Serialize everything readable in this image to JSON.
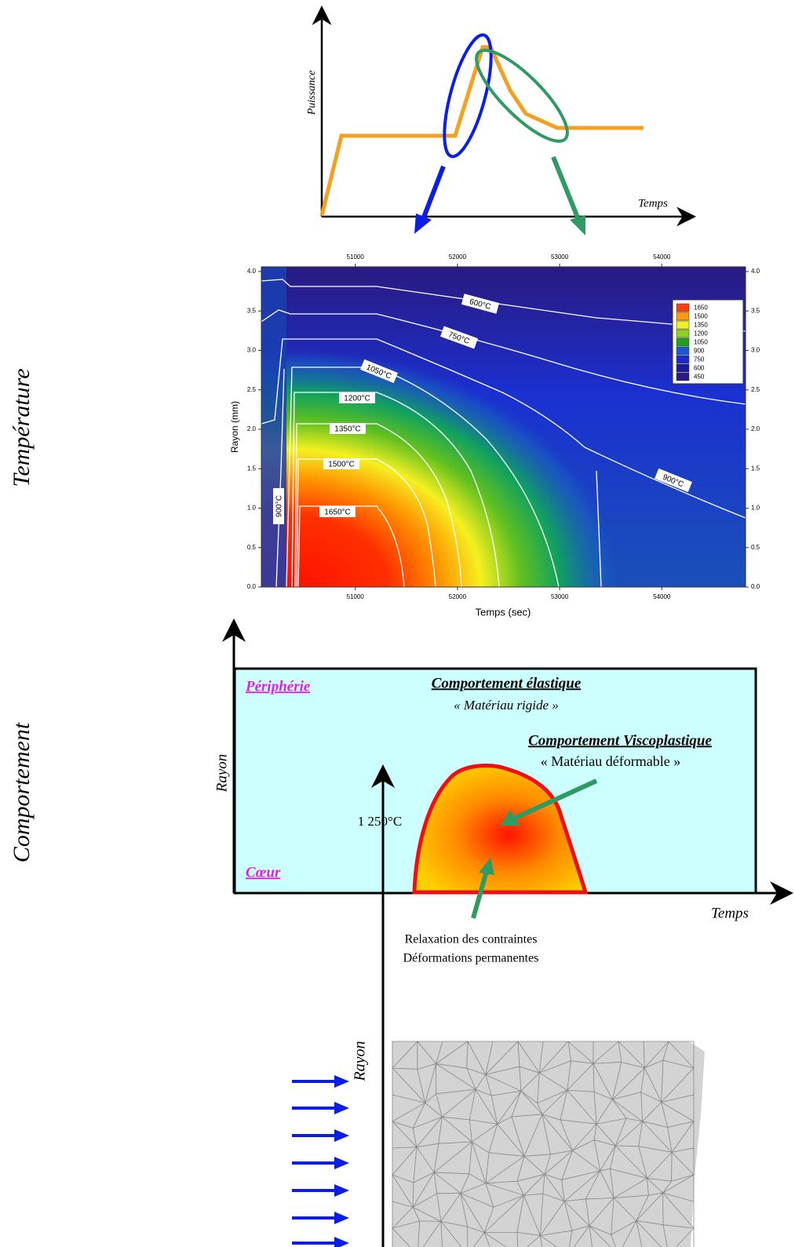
{
  "power_sketch": {
    "y_label": "Puissance",
    "x_label": "Temps"
  },
  "side_labels": {
    "temperature": "Température",
    "behaviour": "Comportement"
  },
  "temperature_plot": {
    "x_label": "Temps (sec)",
    "y_label": "Rayon (mm)",
    "xlim": [
      50080,
      54820
    ],
    "ylim": [
      0,
      4.06
    ],
    "xticks": [
      51000,
      52000,
      53000,
      54000
    ],
    "yticks": [
      {
        "value": 0,
        "label": "0.0"
      },
      {
        "value": 0.5,
        "label": "0.5"
      },
      {
        "value": 1,
        "label": "1.0"
      },
      {
        "value": 1.5,
        "label": "1.5"
      },
      {
        "value": 2,
        "label": "2.0"
      },
      {
        "value": 2.5,
        "label": "2.5"
      },
      {
        "value": 3,
        "label": "3.0"
      },
      {
        "value": 3.5,
        "label": "3.5"
      },
      {
        "value": 4,
        "label": "4.0"
      }
    ],
    "contour_labels": [
      "600°C",
      "750°C",
      "1050°C",
      "1200°C",
      "1350°C",
      "1500°C",
      "1650°C",
      "900°C",
      "900°C"
    ],
    "legend": {
      "levels": [
        450,
        600,
        750,
        900,
        1050,
        1200,
        1350,
        1500,
        1650
      ],
      "colors": [
        "#2a1a8a",
        "#1a1a9a",
        "#1a2ad0",
        "#1a5ad0",
        "#20a020",
        "#90d020",
        "#f0f020",
        "#ff9a10",
        "#ff4010"
      ]
    }
  },
  "behaviour_diagram": {
    "periphery": "Périphérie",
    "core": "Cœur",
    "elastic_title": "Comportement élastique",
    "elastic_sub": "« Matériau rigide »",
    "visco_title": "Comportement Viscoplastique",
    "visco_sub": "« Matériau déformable »",
    "temperature": "1 250°C",
    "y_label": "Rayon",
    "x_label": "Temps",
    "note_line1": "Relaxation des contraintes",
    "note_line2": "Déformations permanentes"
  },
  "mesh_panel": {
    "y_label": "Rayon"
  }
}
